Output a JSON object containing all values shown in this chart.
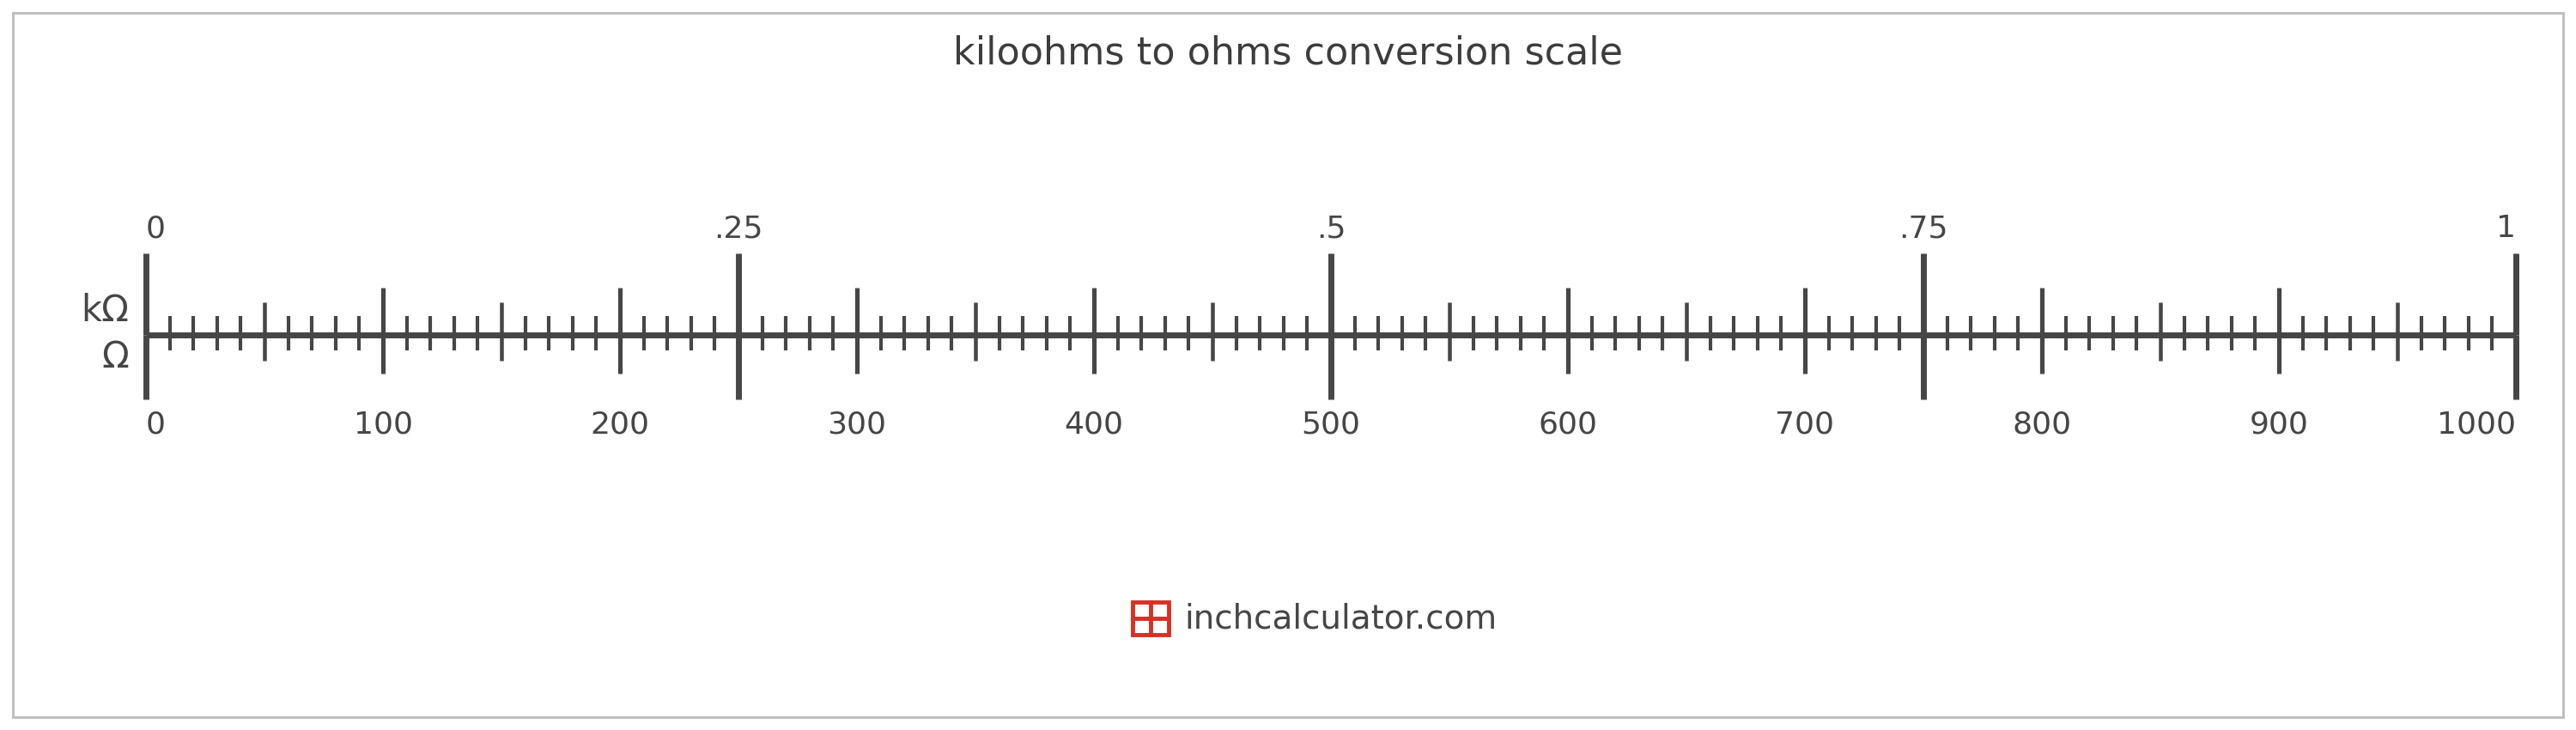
{
  "title": "kiloohms to ohms conversion scale",
  "title_fontsize": 32,
  "title_color": "#3d3d3d",
  "background_color": "#ffffff",
  "ruler_color": "#464646",
  "text_color": "#464646",
  "kohm_labels": [
    {
      "val": 0,
      "label": "0"
    },
    {
      "val": 250,
      "label": ".25"
    },
    {
      "val": 500,
      "label": ".5"
    },
    {
      "val": 750,
      "label": ".75"
    },
    {
      "val": 1000,
      "label": "1"
    }
  ],
  "ohm_labels": [
    0,
    100,
    200,
    300,
    400,
    500,
    600,
    700,
    800,
    900,
    1000
  ],
  "unit_label_kohm": "kΩ",
  "unit_label_ohm": "Ω",
  "logo_text": "inchcalculator.com",
  "logo_color": "#d93025",
  "border_color": "#bbbbbb"
}
